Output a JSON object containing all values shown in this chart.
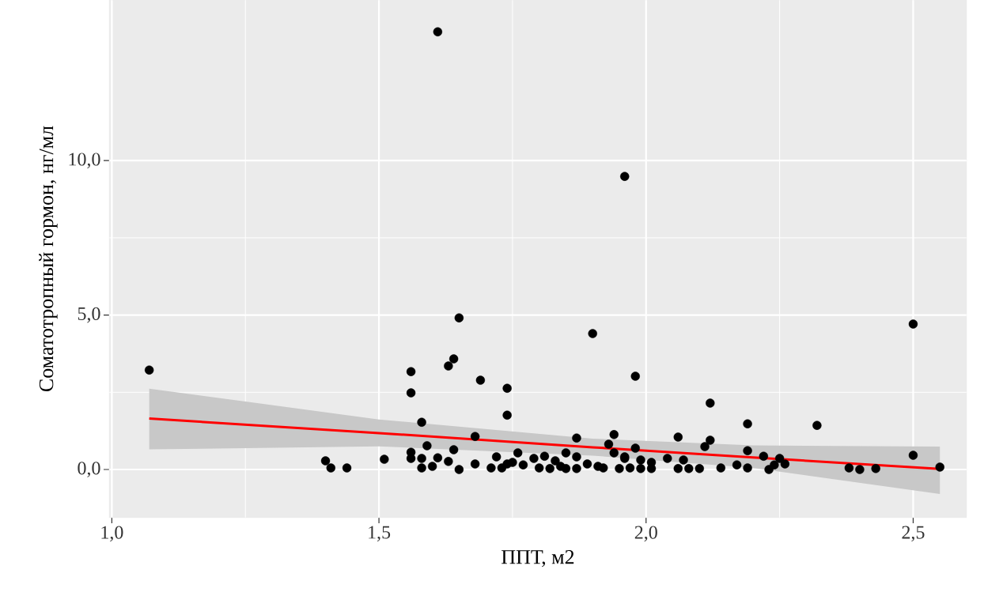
{
  "chart_data": {
    "type": "scatter",
    "xlabel": "ППТ, м2",
    "ylabel": "Соматотропный гормон, нг/мл",
    "xlim": [
      0.995,
      2.6
    ],
    "ylim": [
      -1.56,
      15.2
    ],
    "xticks": [
      {
        "value": 1.0,
        "label": "1,0"
      },
      {
        "value": 1.5,
        "label": "1,5"
      },
      {
        "value": 2.0,
        "label": "2,0"
      },
      {
        "value": 2.5,
        "label": "2,5"
      }
    ],
    "yticks": [
      {
        "value": 0,
        "label": "0,0"
      },
      {
        "value": 5,
        "label": "5,0"
      },
      {
        "value": 10,
        "label": "10,0"
      }
    ],
    "grid": true,
    "series": [
      {
        "marker": "circle",
        "color": "#000000",
        "x": [
          1.07,
          1.61,
          1.96,
          1.65,
          1.9,
          2.5,
          1.64,
          1.63,
          1.56,
          1.69,
          1.74,
          1.98,
          1.56,
          2.12,
          1.74,
          1.58,
          2.32,
          2.19,
          1.68,
          1.94,
          1.87,
          2.06,
          2.12,
          2.11,
          2.5,
          2.55,
          1.4,
          1.41,
          1.44,
          1.51,
          1.56,
          1.59,
          1.56,
          1.58,
          1.58,
          1.6,
          1.61,
          1.63,
          1.64,
          1.65,
          1.68,
          1.72,
          1.71,
          1.73,
          1.74,
          1.75,
          1.76,
          1.77,
          1.79,
          1.81,
          1.8,
          1.82,
          1.83,
          1.84,
          1.85,
          1.85,
          1.87,
          1.87,
          1.89,
          1.91,
          1.92,
          1.93,
          1.94,
          1.95,
          1.96,
          1.98,
          1.96,
          1.99,
          2.01,
          1.97,
          1.99,
          2.01,
          2.04,
          2.07,
          2.06,
          2.08,
          2.1,
          2.14,
          2.17,
          2.19,
          2.19,
          2.22,
          2.23,
          2.24,
          2.26,
          2.25,
          2.38,
          2.4,
          2.43
        ],
        "values": [
          3.22,
          14.17,
          9.49,
          4.91,
          4.4,
          4.71,
          3.58,
          3.35,
          3.17,
          2.89,
          2.63,
          3.02,
          2.48,
          2.15,
          1.76,
          1.53,
          1.43,
          1.48,
          1.07,
          1.13,
          1.02,
          1.05,
          0.95,
          0.74,
          0.46,
          0.08,
          0.28,
          0.05,
          0.05,
          0.33,
          0.56,
          0.77,
          0.36,
          0.36,
          0.05,
          0.1,
          0.38,
          0.26,
          0.64,
          0.0,
          0.18,
          0.41,
          0.05,
          0.05,
          0.18,
          0.23,
          0.54,
          0.15,
          0.36,
          0.43,
          0.05,
          0.03,
          0.28,
          0.1,
          0.54,
          0.03,
          0.41,
          0.03,
          0.18,
          0.1,
          0.05,
          0.82,
          0.54,
          0.03,
          0.41,
          0.69,
          0.36,
          0.31,
          0.23,
          0.05,
          0.03,
          0.03,
          0.36,
          0.31,
          0.03,
          0.03,
          0.03,
          0.05,
          0.15,
          0.61,
          0.05,
          0.43,
          0.0,
          0.15,
          0.18,
          0.36,
          0.05,
          0.0,
          0.03
        ]
      },
      {
        "type": "line",
        "marker": "none",
        "line_style": "solid",
        "color": "#ff0000",
        "x": [
          1.07,
          1.5,
          1.9,
          2.2,
          2.55
        ],
        "values": [
          1.65,
          1.18,
          0.72,
          0.39,
          0.02
        ],
        "lower": [
          0.65,
          0.75,
          0.45,
          0.05,
          -0.79
        ],
        "upper": [
          2.62,
          1.62,
          1.0,
          0.78,
          0.74
        ]
      }
    ]
  }
}
